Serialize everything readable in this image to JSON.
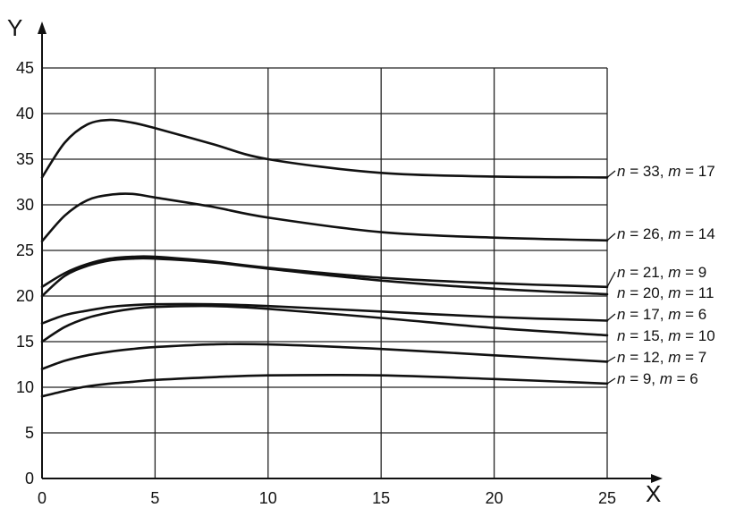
{
  "chart_data": {
    "type": "line",
    "xlabel": "X",
    "ylabel": "Y",
    "xlim": [
      0,
      25
    ],
    "ylim": [
      0,
      45
    ],
    "x_ticks": [
      0,
      5,
      10,
      15,
      20,
      25
    ],
    "y_ticks": [
      0,
      5,
      10,
      15,
      20,
      25,
      30,
      35,
      40,
      45
    ],
    "grid": true,
    "legend": "labels at right end of each curve",
    "colors": {
      "line": "#111111",
      "grid": "#222222",
      "background": "#ffffff"
    },
    "series": [
      {
        "name": "n = 33, m = 17",
        "label_parts": [
          "n",
          " = 33, ",
          "m",
          " = 17"
        ],
        "x": [
          0,
          1,
          2,
          3,
          4,
          5,
          7.5,
          10,
          15,
          20,
          25
        ],
        "y": [
          33,
          36.8,
          38.8,
          39.3,
          39,
          38.4,
          36.7,
          35,
          33.5,
          33.1,
          33
        ]
      },
      {
        "name": "n = 26, m = 14",
        "label_parts": [
          "n",
          " = 26, ",
          "m",
          " = 14"
        ],
        "x": [
          0,
          1,
          2,
          3,
          4,
          5,
          7.5,
          10,
          15,
          20,
          25
        ],
        "y": [
          26,
          28.8,
          30.5,
          31.1,
          31.2,
          30.8,
          29.8,
          28.6,
          27,
          26.4,
          26.1
        ]
      },
      {
        "name": "n = 21, m = 9",
        "label_parts": [
          "n",
          " = 21, ",
          "m",
          " = 9"
        ],
        "x": [
          0,
          1,
          2,
          3,
          4,
          5,
          7.5,
          10,
          15,
          20,
          25
        ],
        "y": [
          21,
          22.5,
          23.5,
          24.1,
          24.3,
          24.3,
          23.8,
          23.1,
          22,
          21.4,
          21
        ]
      },
      {
        "name": "n = 20, m = 11",
        "label_parts": [
          "n",
          " = 20, ",
          "m",
          " = 11"
        ],
        "x": [
          0,
          1,
          2,
          3,
          4,
          5,
          7.5,
          10,
          15,
          20,
          25
        ],
        "y": [
          20,
          22.2,
          23.3,
          23.9,
          24.1,
          24.1,
          23.7,
          23,
          21.7,
          20.8,
          20.2
        ]
      },
      {
        "name": "n = 17, m = 6",
        "label_parts": [
          "n",
          " = 17, ",
          "m",
          " = 6"
        ],
        "x": [
          0,
          1,
          2,
          3,
          4,
          5,
          7.5,
          10,
          15,
          20,
          25
        ],
        "y": [
          17,
          17.9,
          18.4,
          18.8,
          19,
          19.1,
          19.1,
          18.9,
          18.3,
          17.7,
          17.3
        ]
      },
      {
        "name": "n = 15, m = 10",
        "label_parts": [
          "n",
          " = 15, ",
          "m",
          " = 10"
        ],
        "x": [
          0,
          1,
          2,
          3,
          4,
          5,
          7.5,
          10,
          15,
          20,
          25
        ],
        "y": [
          15,
          16.6,
          17.6,
          18.2,
          18.6,
          18.8,
          18.9,
          18.6,
          17.6,
          16.5,
          15.7
        ]
      },
      {
        "name": "n = 12, m = 7",
        "label_parts": [
          "n",
          " = 12, ",
          "m",
          " = 7"
        ],
        "x": [
          0,
          1,
          2,
          3,
          4,
          5,
          7.5,
          10,
          15,
          20,
          25
        ],
        "y": [
          12,
          12.9,
          13.5,
          13.9,
          14.2,
          14.4,
          14.7,
          14.7,
          14.2,
          13.5,
          12.8
        ]
      },
      {
        "name": "n = 9, m = 6",
        "label_parts": [
          "n",
          " = 9, ",
          "m",
          " = 6"
        ],
        "x": [
          0,
          1,
          2,
          3,
          4,
          5,
          7.5,
          10,
          15,
          20,
          25
        ],
        "y": [
          9,
          9.6,
          10.1,
          10.4,
          10.6,
          10.8,
          11.1,
          11.3,
          11.3,
          10.9,
          10.4
        ]
      }
    ]
  }
}
